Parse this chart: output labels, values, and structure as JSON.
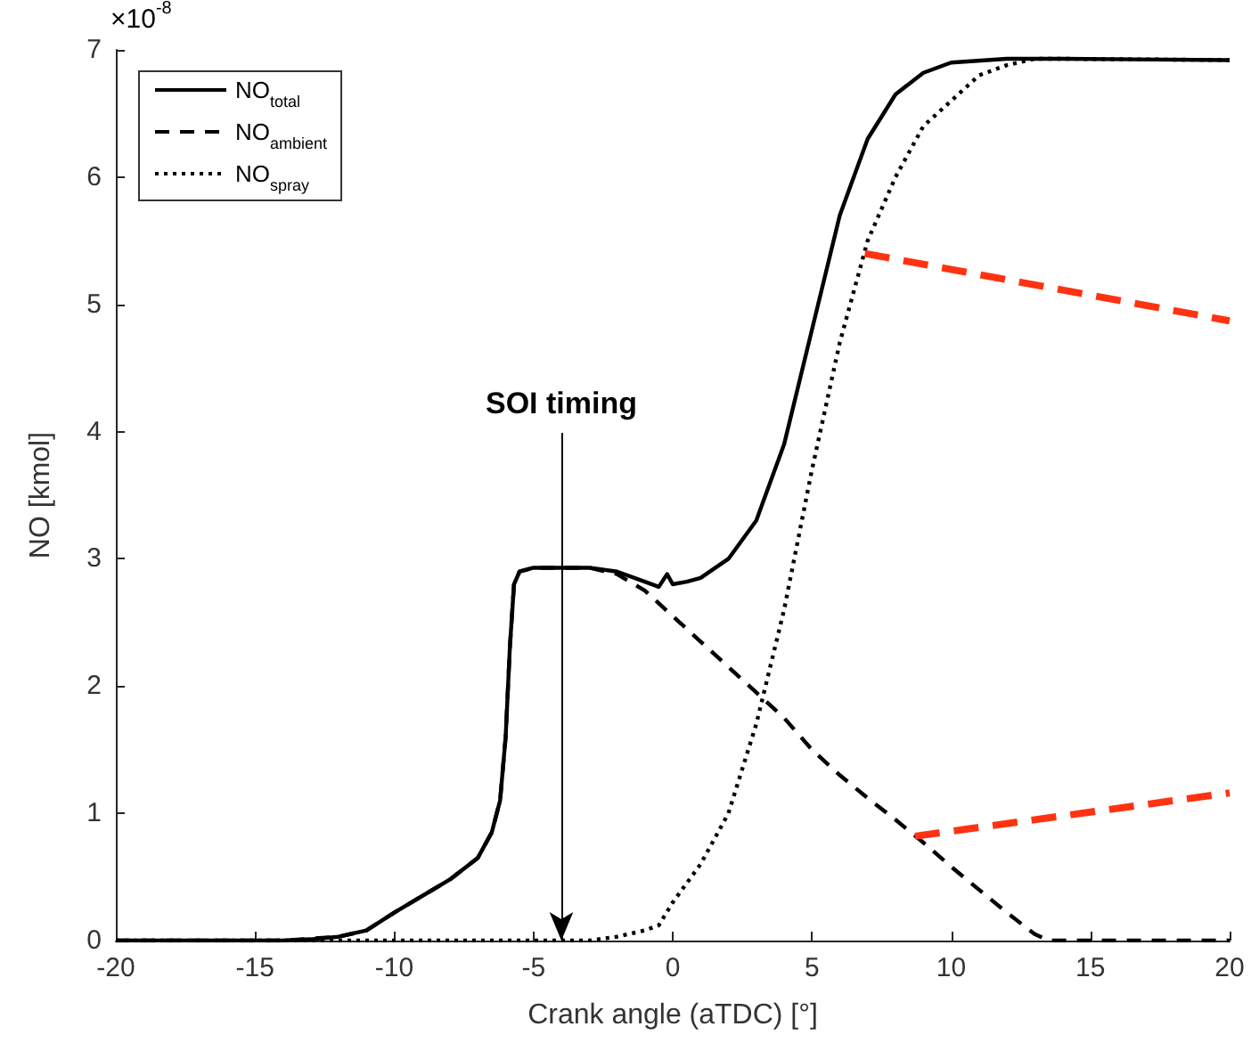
{
  "chart_data": {
    "type": "line",
    "xlabel": "Crank angle (aTDC) [°]",
    "ylabel": "NO [kmol]",
    "xlim": [
      -20,
      20
    ],
    "xticks": [
      -20,
      -15,
      -10,
      -5,
      0,
      5,
      10,
      15,
      20
    ],
    "ylim": [
      0,
      7
    ],
    "yticks": [
      0,
      1,
      2,
      3,
      4,
      5,
      6,
      7
    ],
    "grid": false,
    "legend": "top left",
    "marker": "none",
    "annotations": [
      "×10$^{-8}$",
      {
        "text": "SOI timing",
        "x": -4,
        "y": 0
      }
    ],
    "series": [
      {
        "name": "NO$_{total}$",
        "color": "#000000",
        "line_style": "solid",
        "x": [
          -20,
          -14,
          -13,
          -12,
          -11,
          -10,
          -9,
          -8,
          -7,
          -6.5,
          -6.2,
          -6,
          -5.85,
          -5.7,
          -5.5,
          -5,
          -4,
          -3,
          -2,
          -1,
          -0.5,
          -0.2,
          0,
          0.5,
          1,
          2,
          3,
          4,
          5,
          6,
          7,
          8,
          9,
          10,
          12,
          14,
          20
        ],
        "values": [
          0,
          0,
          0.01,
          0.03,
          0.08,
          0.22,
          0.35,
          0.48,
          0.65,
          0.85,
          1.1,
          1.6,
          2.3,
          2.8,
          2.9,
          2.93,
          2.93,
          2.93,
          2.9,
          2.82,
          2.78,
          2.88,
          2.8,
          2.82,
          2.85,
          3.0,
          3.3,
          3.9,
          4.8,
          5.7,
          6.3,
          6.65,
          6.82,
          6.9,
          6.93,
          6.93,
          6.92
        ]
      },
      {
        "name": "NO$_{ambient}$",
        "color": "#000000",
        "line_style": "dashed",
        "x": [
          -20,
          -14,
          -12,
          -11,
          -10,
          -9,
          -8,
          -7,
          -6.5,
          -6.2,
          -6,
          -5.85,
          -5.7,
          -5.5,
          -5,
          -4,
          -3,
          -2,
          -1,
          0,
          1,
          2,
          3,
          4,
          5,
          6,
          7,
          8,
          9,
          10,
          11,
          12,
          13,
          13.5,
          20
        ],
        "values": [
          0,
          0,
          0.03,
          0.08,
          0.22,
          0.35,
          0.48,
          0.65,
          0.85,
          1.1,
          1.6,
          2.3,
          2.8,
          2.9,
          2.93,
          2.93,
          2.93,
          2.88,
          2.75,
          2.55,
          2.35,
          2.15,
          1.95,
          1.75,
          1.5,
          1.3,
          1.12,
          0.95,
          0.77,
          0.58,
          0.4,
          0.22,
          0.05,
          0,
          0
        ]
      },
      {
        "name": "NO$_{spray}$",
        "color": "#000000",
        "line_style": "dotted",
        "x": [
          -20,
          -3,
          -2,
          -1,
          -0.5,
          0,
          0.5,
          1,
          2,
          3,
          4,
          5,
          6,
          7,
          8,
          9,
          10,
          11,
          12,
          13,
          14,
          20
        ],
        "values": [
          0,
          0,
          0.03,
          0.08,
          0.12,
          0.3,
          0.45,
          0.6,
          1.0,
          1.7,
          2.6,
          3.7,
          4.7,
          5.5,
          6.0,
          6.4,
          6.6,
          6.8,
          6.88,
          6.93,
          6.93,
          6.92
        ]
      },
      {
        "color": "#ff3311",
        "line_style": "dashed",
        "x": [
          6.9,
          20
        ],
        "values": [
          5.4,
          4.87
        ]
      },
      {
        "color": "#ff3311",
        "line_style": "dashed",
        "x": [
          8.7,
          20
        ],
        "values": [
          0.82,
          1.16
        ]
      }
    ]
  }
}
